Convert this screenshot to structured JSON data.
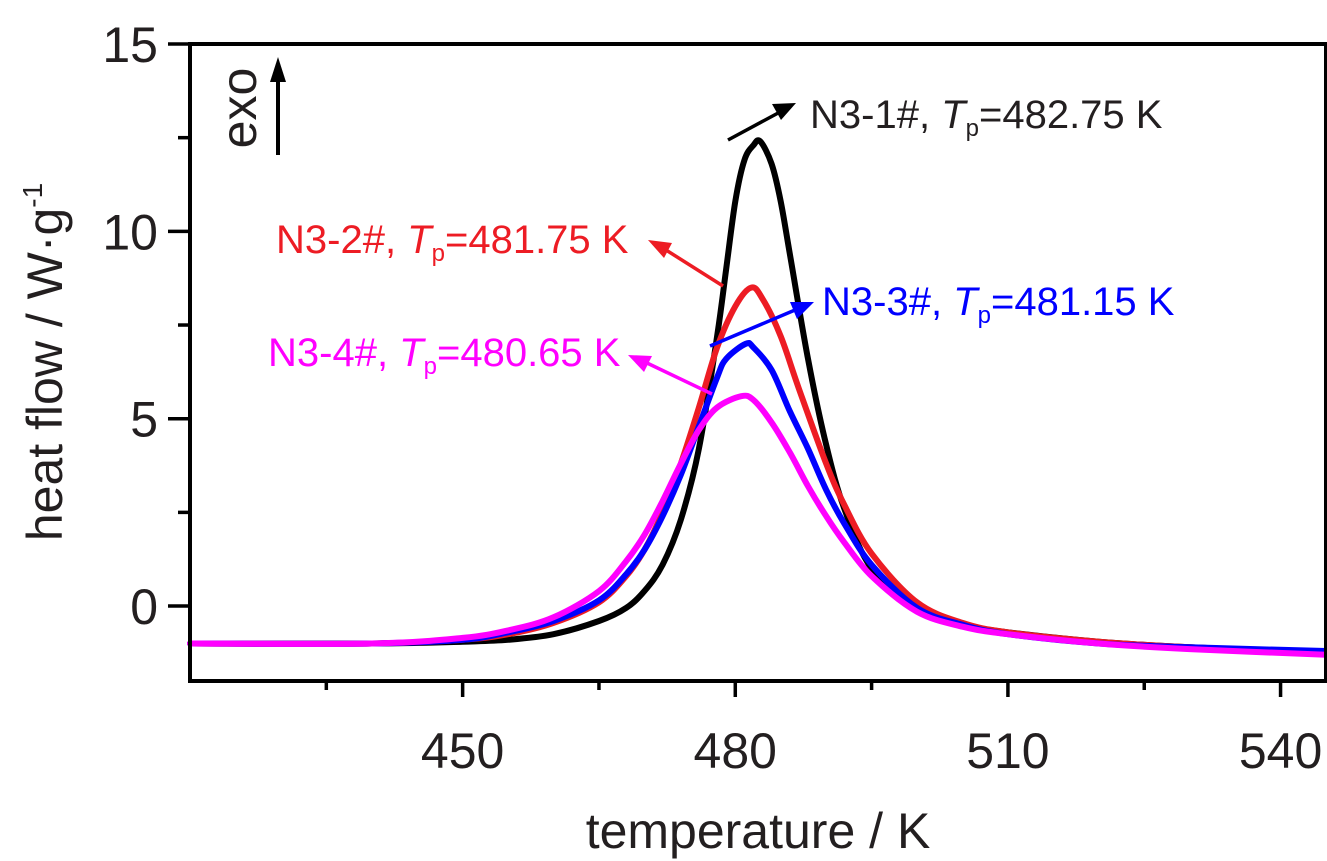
{
  "chart_data": {
    "type": "line",
    "xlabel": "temperature / K",
    "ylabel_main": "heat flow / W·g",
    "ylabel_sup": "-1",
    "xlim": [
      420,
      545
    ],
    "ylim": [
      -2,
      15
    ],
    "xticks": [
      450,
      480,
      510,
      540
    ],
    "xtick_labels": [
      "450",
      "480",
      "510",
      "540"
    ],
    "yticks": [
      0,
      5,
      10,
      15
    ],
    "ytick_labels": [
      "0",
      "5",
      "10",
      "15"
    ],
    "exo_label": "exo",
    "grid": false,
    "series": [
      {
        "id": "s1",
        "name_prefix": "N3-1#, ",
        "name_t": "T",
        "name_sub": "p",
        "name_suffix": "=482.75 K",
        "color": "#000000",
        "x": [
          420,
          440,
          450,
          455,
          460,
          465,
          468,
          470,
          472,
          474,
          476,
          478,
          479,
          480,
          481,
          482,
          482.75,
          484,
          485,
          486,
          488,
          490,
          492,
          495,
          500,
          505,
          510,
          520,
          530,
          545
        ],
        "y": [
          -1.0,
          -1.0,
          -0.95,
          -0.9,
          -0.75,
          -0.4,
          -0.05,
          0.4,
          1.1,
          2.3,
          4.2,
          7.2,
          9.0,
          10.8,
          11.9,
          12.3,
          12.4,
          11.8,
          10.8,
          9.4,
          6.6,
          4.3,
          2.6,
          1.0,
          -0.1,
          -0.5,
          -0.7,
          -0.95,
          -1.1,
          -1.25
        ]
      },
      {
        "id": "s2",
        "name_prefix": "N3-2#, ",
        "name_t": "T",
        "name_sub": "p",
        "name_suffix": "=481.75 K",
        "color": "#ed1c24",
        "x": [
          420,
          440,
          450,
          455,
          460,
          465,
          468,
          470,
          472,
          474,
          476,
          478,
          480,
          481.75,
          483,
          485,
          487,
          490,
          492,
          495,
          500,
          505,
          510,
          520,
          530,
          545
        ],
        "y": [
          -1.0,
          -1.0,
          -0.9,
          -0.75,
          -0.45,
          0.1,
          0.8,
          1.5,
          2.5,
          3.8,
          5.3,
          6.9,
          8.0,
          8.5,
          8.2,
          7.2,
          5.8,
          3.8,
          2.7,
          1.4,
          0.1,
          -0.45,
          -0.7,
          -0.95,
          -1.1,
          -1.25
        ]
      },
      {
        "id": "s3",
        "name_prefix": "N3-3#, ",
        "name_t": "T",
        "name_sub": "p",
        "name_suffix": "=481.15 K",
        "color": "#0000ff",
        "x": [
          420,
          440,
          450,
          455,
          460,
          465,
          468,
          470,
          472,
          474,
          476,
          478,
          479,
          481.15,
          482,
          484,
          486,
          488,
          490,
          492,
          495,
          500,
          505,
          510,
          520,
          530,
          545
        ],
        "y": [
          -1.0,
          -1.0,
          -0.9,
          -0.7,
          -0.4,
          0.15,
          0.85,
          1.5,
          2.4,
          3.5,
          4.8,
          6.1,
          6.6,
          7.0,
          6.9,
          6.3,
          5.2,
          4.2,
          3.1,
          2.2,
          1.1,
          -0.05,
          -0.5,
          -0.75,
          -1.0,
          -1.1,
          -1.2
        ]
      },
      {
        "id": "s4",
        "name_prefix": "N3-4#, ",
        "name_t": "T",
        "name_sub": "p",
        "name_suffix": "=480.65 K",
        "color": "#ff00ff",
        "x": [
          420,
          440,
          450,
          455,
          460,
          465,
          468,
          470,
          472,
          474,
          476,
          478,
          480.65,
          482,
          484,
          486,
          488,
          490,
          492,
          495,
          500,
          505,
          510,
          520,
          530,
          545
        ],
        "y": [
          -1.0,
          -1.0,
          -0.85,
          -0.65,
          -0.3,
          0.4,
          1.2,
          1.9,
          2.8,
          3.8,
          4.7,
          5.3,
          5.6,
          5.5,
          4.9,
          4.1,
          3.2,
          2.4,
          1.7,
          0.8,
          -0.15,
          -0.55,
          -0.75,
          -1.0,
          -1.15,
          -1.3
        ]
      }
    ]
  }
}
